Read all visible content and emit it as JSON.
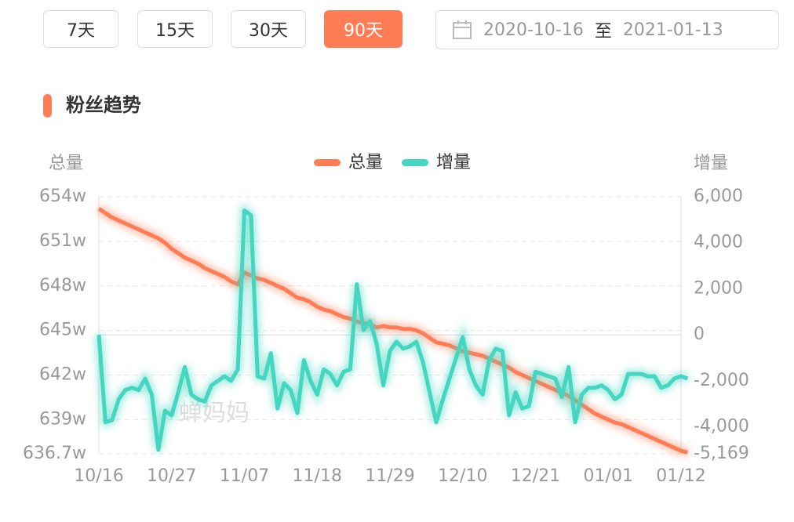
{
  "controls": {
    "ranges": [
      "7天",
      "15天",
      "30天",
      "90天"
    ],
    "active": "90天",
    "date_start": "2020-10-16",
    "date_separator": "至",
    "date_end": "2021-01-13"
  },
  "chart_data": {
    "type": "line",
    "title": "粉丝趋势",
    "y_label": "总量",
    "y2_label": "增量",
    "watermark": "蝉妈妈",
    "categories": [
      "10/16",
      null,
      null,
      null,
      null,
      null,
      null,
      null,
      null,
      null,
      null,
      "10/27",
      null,
      null,
      null,
      null,
      null,
      null,
      null,
      null,
      null,
      null,
      "11/07",
      null,
      null,
      null,
      null,
      null,
      null,
      null,
      null,
      null,
      null,
      "11/18",
      null,
      null,
      null,
      null,
      null,
      null,
      null,
      null,
      null,
      null,
      "11/29",
      null,
      null,
      null,
      null,
      null,
      null,
      null,
      null,
      null,
      null,
      "12/10",
      null,
      null,
      null,
      null,
      null,
      null,
      null,
      null,
      null,
      null,
      "12/21",
      null,
      null,
      null,
      null,
      null,
      null,
      null,
      null,
      null,
      null,
      "01/01",
      null,
      null,
      null,
      null,
      null,
      null,
      null,
      null,
      null,
      null,
      "01/12",
      null
    ],
    "series": [
      {
        "name": "总量",
        "color": "#ff7c55",
        "values": [
          653.2,
          652.9,
          652.6,
          652.4,
          652.2,
          652.0,
          651.8,
          651.6,
          651.4,
          651.2,
          650.9,
          650.5,
          650.2,
          649.9,
          649.7,
          649.5,
          649.2,
          649.0,
          648.8,
          648.6,
          648.3,
          648.1,
          648.9,
          648.7,
          648.5,
          648.4,
          648.2,
          648.0,
          647.8,
          647.5,
          647.2,
          647.1,
          646.9,
          646.6,
          646.4,
          646.3,
          646.1,
          645.9,
          645.8,
          645.6,
          645.5,
          645.4,
          645.2,
          645.3,
          645.2,
          645.2,
          645.1,
          645.1,
          645.0,
          644.8,
          644.5,
          644.2,
          644.1,
          644.0,
          643.8,
          643.6,
          643.5,
          643.4,
          643.3,
          643.1,
          642.9,
          642.7,
          642.5,
          642.2,
          642.0,
          641.8,
          641.6,
          641.4,
          641.2,
          641.0,
          640.8,
          640.6,
          640.3,
          640.0,
          639.7,
          639.4,
          639.2,
          639.0,
          638.8,
          638.7,
          638.5,
          638.3,
          638.1,
          637.9,
          637.7,
          637.5,
          637.3,
          637.1,
          636.9,
          636.8
        ]
      },
      {
        "name": "增量",
        "color": "#45d6c1",
        "axis": "y2",
        "values": [
          0,
          -3800,
          -3700,
          -2800,
          -2400,
          -2300,
          -2400,
          -1900,
          -2600,
          -5000,
          -3300,
          -3500,
          -2500,
          -1400,
          -2600,
          -2800,
          -2900,
          -2200,
          -2000,
          -1800,
          -2000,
          -1500,
          5400,
          5200,
          -1800,
          -1900,
          -800,
          -3200,
          -2100,
          -2400,
          -3400,
          -1100,
          -2000,
          -2600,
          -1500,
          -1700,
          -2200,
          -1600,
          -1500,
          2200,
          200,
          600,
          -400,
          -2200,
          -700,
          -300,
          -600,
          -500,
          -300,
          -1200,
          -2500,
          -3800,
          -2800,
          -1900,
          -1000,
          -100,
          -1500,
          -2200,
          -2600,
          -1100,
          -600,
          -700,
          -3500,
          -2500,
          -3200,
          -3100,
          -1600,
          -1700,
          -1800,
          -1900,
          -2700,
          -1400,
          -3800,
          -2600,
          -2300,
          -2300,
          -2200,
          -2400,
          -2800,
          -2600,
          -1700,
          -1700,
          -1700,
          -1800,
          -1800,
          -2300,
          -2200,
          -1900,
          -1800,
          -1900
        ]
      }
    ],
    "ylim": [
      636.7,
      654
    ],
    "yticks": [
      {
        "value": 654,
        "label": "654w"
      },
      {
        "value": 651,
        "label": "651w"
      },
      {
        "value": 648,
        "label": "648w"
      },
      {
        "value": 645,
        "label": "645w"
      },
      {
        "value": 642,
        "label": "642w"
      },
      {
        "value": 639,
        "label": "639w"
      },
      {
        "value": 636.7,
        "label": "636.7w"
      }
    ],
    "y2lim": [
      -5169,
      6000
    ],
    "y2ticks": [
      {
        "value": 6000,
        "label": "6,000"
      },
      {
        "value": 4000,
        "label": "4,000"
      },
      {
        "value": 2000,
        "label": "2,000"
      },
      0,
      {
        "value": -2000,
        "label": "-2,000"
      },
      {
        "value": -4000,
        "label": "-4,000"
      },
      {
        "value": -5169,
        "label": "-5,169"
      }
    ],
    "grid": true
  }
}
